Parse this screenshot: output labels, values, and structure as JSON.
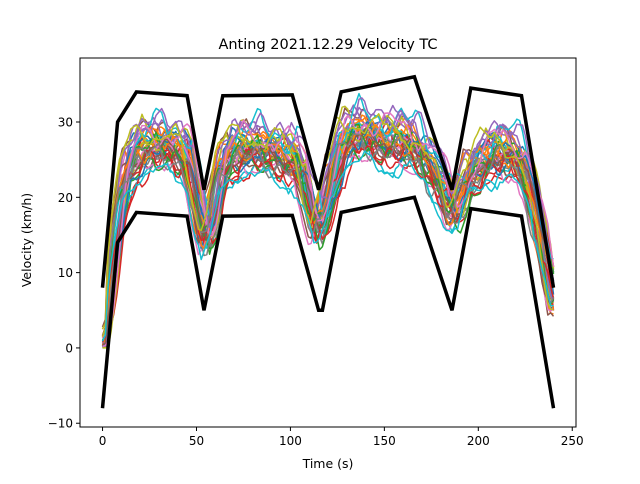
{
  "chart_data": {
    "type": "line",
    "title": "Anting 2021.12.29 Velocity TC",
    "xlabel": "Time (s)",
    "ylabel": "Velocity (km/h)",
    "xlim": [
      -12,
      252
    ],
    "ylim": [
      -10.5,
      38.5
    ],
    "xticks": [
      0,
      50,
      100,
      150,
      200,
      250
    ],
    "yticks": [
      -10,
      0,
      10,
      20,
      30
    ],
    "grid": false,
    "legend": "none",
    "colors": [
      "#1f77b4",
      "#ff7f0e",
      "#2ca02c",
      "#d62728",
      "#9467bd",
      "#8c564b",
      "#e377c2",
      "#7f7f7f",
      "#bcbd22",
      "#17becf"
    ],
    "bound_color": "#000000",
    "upper_bound": {
      "x": [
        0,
        8,
        18,
        45,
        54,
        64,
        101,
        115,
        127,
        166,
        186,
        196,
        223,
        240
      ],
      "y": [
        8,
        30,
        34,
        33.5,
        21,
        33.5,
        33.6,
        21,
        34,
        36,
        21,
        34.5,
        33.5,
        8
      ]
    },
    "lower_bound": {
      "x": [
        0,
        8,
        18,
        45,
        54,
        64,
        101,
        115,
        117,
        127,
        166,
        186,
        196,
        223,
        240
      ],
      "y": [
        -8,
        14,
        18,
        17.5,
        5,
        17.5,
        17.6,
        5,
        5,
        18,
        20,
        5,
        18.5,
        17.5,
        -8
      ]
    },
    "velocity_profile": {
      "x": [
        0,
        3,
        6,
        9,
        12,
        15,
        20,
        30,
        40,
        45,
        50,
        54,
        58,
        63,
        70,
        80,
        90,
        100,
        105,
        110,
        114,
        118,
        122,
        127,
        135,
        145,
        155,
        165,
        172,
        180,
        186,
        190,
        195,
        205,
        215,
        222,
        228,
        234,
        240
      ],
      "y": [
        1,
        6,
        13,
        19,
        23,
        25,
        26.5,
        27,
        26.5,
        25.5,
        19,
        14,
        17,
        24,
        26.5,
        26.5,
        26,
        25.5,
        24,
        19,
        16,
        18,
        23,
        27,
        28.5,
        28,
        27.5,
        27,
        25,
        22,
        18,
        19,
        23,
        26,
        26,
        25,
        21,
        14,
        6
      ]
    },
    "runs": 40
  }
}
